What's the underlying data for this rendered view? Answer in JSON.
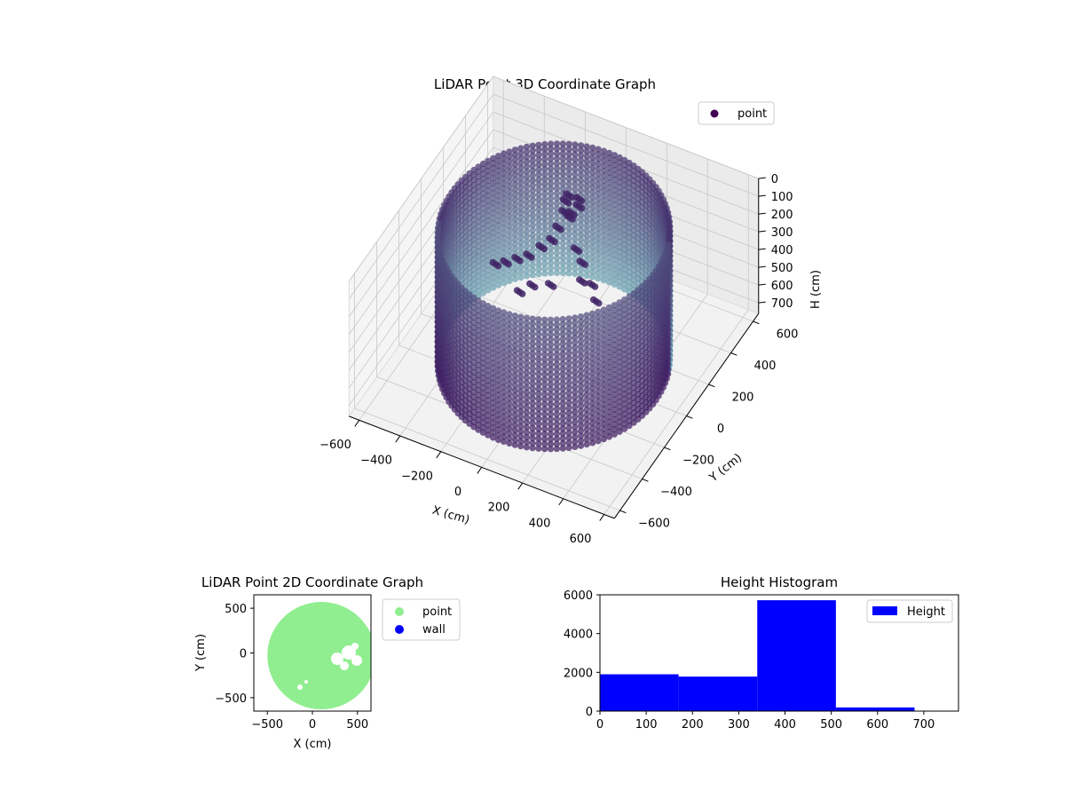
{
  "chart_data": [
    {
      "type": "scatter3d",
      "title": "LiDAR Point 3D Coordinate Graph",
      "xlabel": "X (cm)",
      "ylabel": "Y (cm)",
      "zlabel": "H (cm)",
      "xticks": [
        -600,
        -400,
        -200,
        0,
        200,
        400,
        600
      ],
      "yticks": [
        -600,
        -400,
        -200,
        0,
        200,
        400,
        600
      ],
      "zticks": [
        0,
        100,
        200,
        300,
        400,
        500,
        600,
        700
      ],
      "xlim": [
        -650,
        650
      ],
      "ylim": [
        -650,
        650
      ],
      "zlim": [
        0,
        760
      ],
      "z_inverted": true,
      "grid": true,
      "legend": {
        "position": "top-right",
        "entries": [
          "point"
        ]
      },
      "series": [
        {
          "name": "point",
          "color_map": "viridis",
          "shape": "cylindrical wall ring",
          "ring_radius": 500,
          "height_range": [
            0,
            760
          ],
          "colors": {
            "legend": "#440154",
            "dark": "#3f1d62",
            "light": "#6fa6b4"
          }
        }
      ]
    },
    {
      "type": "scatter",
      "title": "LiDAR Point 2D Coordinate Graph",
      "xlabel": "X (cm)",
      "ylabel": "Y (cm)",
      "xticks": [
        -500,
        0,
        500
      ],
      "yticks": [
        -500,
        0,
        500
      ],
      "xlim": [
        -650,
        650
      ],
      "ylim": [
        -650,
        650
      ],
      "legend": {
        "position": "outside-right",
        "entries": [
          "point",
          "wall"
        ]
      },
      "series": [
        {
          "name": "point",
          "color": "#90ee90",
          "shape": "filled disc",
          "radius": 600
        },
        {
          "name": "wall",
          "color": "#0000ff"
        }
      ]
    },
    {
      "type": "histogram",
      "title": "Height Histogram",
      "xticks": [
        0,
        100,
        200,
        300,
        400,
        500,
        600,
        700
      ],
      "yticks": [
        0,
        2000,
        4000,
        6000
      ],
      "xlim": [
        0,
        775
      ],
      "ylim": [
        0,
        6000
      ],
      "legend": {
        "position": "top-right",
        "entries": [
          "Height"
        ]
      },
      "series": [
        {
          "name": "Height",
          "color": "#0000ff",
          "bins": [
            {
              "from": 0,
              "to": 170,
              "count": 1900
            },
            {
              "from": 170,
              "to": 340,
              "count": 1780
            },
            {
              "from": 340,
              "to": 510,
              "count": 5720
            },
            {
              "from": 510,
              "to": 680,
              "count": 190
            }
          ]
        }
      ]
    }
  ]
}
